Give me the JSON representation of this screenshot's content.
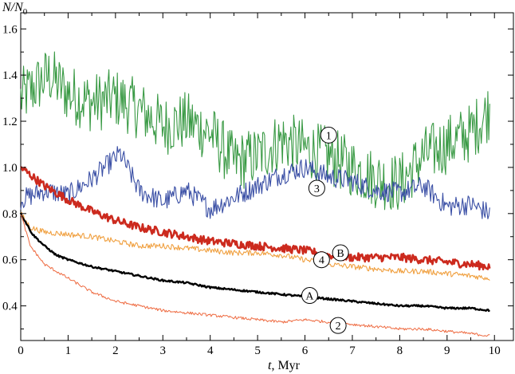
{
  "chart_data": {
    "type": "line",
    "ylabel": "N/N",
    "ylabel_sub": "0",
    "xlabel_var": "t",
    "xlabel_unit": ", Myr",
    "xlim": [
      0,
      10.4
    ],
    "ylim": [
      0.25,
      1.67
    ],
    "x_ticks": [
      "0",
      "1",
      "2",
      "3",
      "4",
      "5",
      "6",
      "7",
      "8",
      "9",
      "10"
    ],
    "y_ticks": [
      "0.4",
      "0.6",
      "0.8",
      "1.0",
      "1.2",
      "1.4",
      "1.6"
    ],
    "grid": false,
    "series": [
      {
        "name": "1",
        "color": "#3a9a45",
        "width": 1.1,
        "noise": 0.13,
        "x": [
          0,
          0.6,
          1.0,
          1.5,
          2.0,
          2.5,
          3.0,
          3.5,
          4.0,
          4.5,
          5.0,
          5.5,
          6.0,
          6.5,
          7.0,
          7.5,
          8.0,
          8.5,
          9.0,
          9.5,
          9.9
        ],
        "y": [
          1.3,
          1.4,
          1.32,
          1.28,
          1.3,
          1.25,
          1.18,
          1.2,
          1.15,
          1.02,
          1.05,
          1.12,
          1.08,
          1.05,
          1.0,
          0.95,
          0.93,
          1.05,
          1.1,
          1.15,
          1.25
        ]
      },
      {
        "name": "3",
        "color": "#3a4fa5",
        "width": 1.1,
        "noise": 0.045,
        "x": [
          0,
          0.5,
          1.0,
          1.5,
          2.1,
          2.5,
          3.0,
          3.5,
          4.0,
          4.4,
          5.0,
          5.5,
          6.0,
          6.5,
          7.0,
          7.5,
          8.0,
          8.5,
          9.0,
          9.5,
          9.9
        ],
        "y": [
          0.86,
          0.9,
          0.88,
          0.95,
          1.06,
          0.9,
          0.85,
          0.9,
          0.82,
          0.86,
          0.92,
          0.97,
          1.0,
          0.96,
          0.94,
          0.9,
          0.89,
          0.92,
          0.83,
          0.84,
          0.8
        ]
      },
      {
        "name": "B",
        "color": "#cc2a1e",
        "width": 2.6,
        "noise": 0.018,
        "x": [
          0,
          0.5,
          1.0,
          1.5,
          2.0,
          2.5,
          3.0,
          3.5,
          4.0,
          4.5,
          5.0,
          5.5,
          6.0,
          6.5,
          7.0,
          7.5,
          8.0,
          8.5,
          9.0,
          9.5,
          9.9
        ],
        "y": [
          1.0,
          0.92,
          0.86,
          0.81,
          0.77,
          0.74,
          0.72,
          0.7,
          0.68,
          0.67,
          0.66,
          0.65,
          0.64,
          0.62,
          0.61,
          0.61,
          0.61,
          0.6,
          0.59,
          0.58,
          0.57
        ]
      },
      {
        "name": "4",
        "color": "#f0a040",
        "width": 1.1,
        "noise": 0.012,
        "x": [
          0,
          0.2,
          0.5,
          1.0,
          1.5,
          2.0,
          2.5,
          3.0,
          3.5,
          4.0,
          4.5,
          5.0,
          5.5,
          6.0,
          6.5,
          7.0,
          7.5,
          8.0,
          8.5,
          9.0,
          9.5,
          9.9
        ],
        "y": [
          0.8,
          0.74,
          0.72,
          0.71,
          0.7,
          0.68,
          0.66,
          0.66,
          0.65,
          0.64,
          0.63,
          0.63,
          0.62,
          0.6,
          0.58,
          0.57,
          0.56,
          0.55,
          0.55,
          0.54,
          0.53,
          0.52
        ]
      },
      {
        "name": "A",
        "color": "#000000",
        "width": 2.4,
        "noise": 0.004,
        "x": [
          0,
          0.25,
          0.5,
          0.75,
          1.0,
          1.5,
          2.0,
          2.5,
          3.0,
          3.5,
          4.0,
          4.5,
          5.0,
          5.5,
          6.0,
          6.5,
          7.0,
          7.5,
          8.0,
          8.5,
          9.0,
          9.5,
          9.9
        ],
        "y": [
          0.8,
          0.71,
          0.66,
          0.62,
          0.6,
          0.57,
          0.55,
          0.53,
          0.51,
          0.5,
          0.48,
          0.47,
          0.46,
          0.45,
          0.44,
          0.43,
          0.42,
          0.41,
          0.4,
          0.4,
          0.39,
          0.39,
          0.38
        ]
      },
      {
        "name": "2",
        "color": "#ee6a40",
        "width": 1.0,
        "noise": 0.006,
        "x": [
          0,
          0.2,
          0.5,
          1.0,
          1.5,
          2.0,
          2.5,
          3.0,
          3.5,
          4.0,
          4.5,
          5.0,
          5.5,
          6.0,
          6.5,
          7.0,
          7.5,
          8.0,
          8.5,
          9.0,
          9.5,
          9.9
        ],
        "y": [
          0.8,
          0.66,
          0.58,
          0.52,
          0.46,
          0.42,
          0.4,
          0.38,
          0.37,
          0.36,
          0.35,
          0.34,
          0.33,
          0.34,
          0.33,
          0.32,
          0.31,
          0.3,
          0.3,
          0.29,
          0.28,
          0.27
        ]
      }
    ],
    "annotations": [
      {
        "label": "1",
        "x": 6.5,
        "y": 1.14
      },
      {
        "label": "3",
        "x": 6.25,
        "y": 0.91
      },
      {
        "label": "B",
        "x": 6.75,
        "y": 0.63
      },
      {
        "label": "4",
        "x": 6.35,
        "y": 0.6
      },
      {
        "label": "A",
        "x": 6.1,
        "y": 0.445
      },
      {
        "label": "2",
        "x": 6.7,
        "y": 0.315
      }
    ]
  }
}
